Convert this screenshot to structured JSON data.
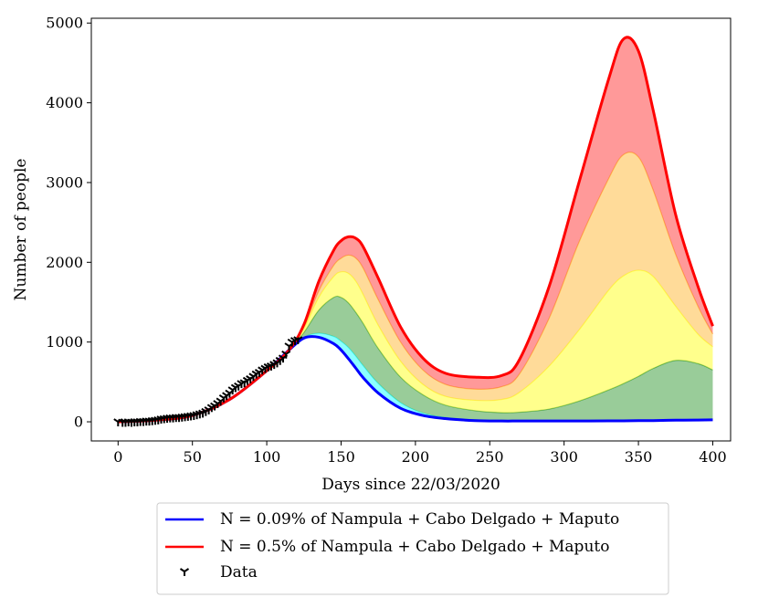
{
  "chart_data": {
    "type": "area",
    "title": "",
    "xlabel": "Days since 22/03/2020",
    "ylabel": "Number of people",
    "xlim": [
      -18,
      412
    ],
    "ylim": [
      -240,
      5060
    ],
    "xticks": [
      0,
      50,
      100,
      150,
      200,
      250,
      300,
      350,
      400
    ],
    "yticks": [
      0,
      1000,
      2000,
      3000,
      4000,
      5000
    ],
    "x": [
      0,
      25,
      50,
      75,
      100,
      115,
      125,
      135,
      145,
      150,
      155,
      160,
      165,
      175,
      190,
      205,
      220,
      240,
      258,
      270,
      290,
      310,
      330,
      340,
      350,
      360,
      375,
      390,
      400
    ],
    "series": [
      {
        "name": "N = 0.09% of Nampula + Cabo Delgado + Maputo",
        "color": "#0000ff",
        "role": "lower-bound",
        "values": [
          0,
          20,
          80,
          280,
          640,
          900,
          1050,
          1060,
          980,
          900,
          790,
          670,
          550,
          360,
          170,
          80,
          40,
          15,
          10,
          10,
          10,
          10,
          12,
          12,
          15,
          15,
          20,
          22,
          25
        ]
      },
      {
        "name": "band-cyan",
        "color": "#00ffff",
        "values": [
          0,
          20,
          80,
          280,
          640,
          900,
          1060,
          1110,
          1070,
          1010,
          930,
          820,
          700,
          480,
          240,
          110,
          55,
          25,
          15,
          12,
          12,
          14,
          16,
          18,
          20,
          22,
          25,
          28,
          30
        ]
      },
      {
        "name": "band-green",
        "color": "#008000",
        "values": [
          0,
          20,
          80,
          280,
          640,
          900,
          1120,
          1400,
          1560,
          1560,
          1490,
          1370,
          1230,
          920,
          560,
          340,
          210,
          140,
          115,
          120,
          160,
          260,
          400,
          480,
          570,
          670,
          770,
          730,
          650
        ]
      },
      {
        "name": "band-yellow",
        "color": "#ffff00",
        "values": [
          0,
          20,
          80,
          280,
          640,
          900,
          1170,
          1560,
          1820,
          1880,
          1860,
          1760,
          1590,
          1210,
          760,
          470,
          320,
          270,
          280,
          370,
          700,
          1150,
          1650,
          1830,
          1900,
          1820,
          1450,
          1100,
          940
        ]
      },
      {
        "name": "band-orange",
        "color": "#ffa500",
        "values": [
          0,
          20,
          80,
          280,
          640,
          900,
          1190,
          1640,
          1960,
          2050,
          2090,
          2050,
          1920,
          1530,
          1000,
          650,
          470,
          410,
          440,
          600,
          1300,
          2250,
          3050,
          3350,
          3320,
          2900,
          2100,
          1450,
          1100
        ]
      },
      {
        "name": "N = 0.5% of Nampula + Cabo Delgado + Maputo",
        "color": "#ff0000",
        "role": "upper-bound",
        "values": [
          0,
          20,
          80,
          280,
          640,
          900,
          1220,
          1760,
          2150,
          2270,
          2320,
          2300,
          2190,
          1800,
          1190,
          800,
          610,
          560,
          580,
          780,
          1700,
          3000,
          4300,
          4800,
          4650,
          3900,
          2600,
          1700,
          1200
        ]
      }
    ],
    "data_points": {
      "name": "Data",
      "marker": "Y",
      "x": [
        0,
        3,
        5,
        7,
        9,
        11,
        13,
        15,
        17,
        19,
        21,
        23,
        25,
        27,
        29,
        31,
        33,
        35,
        37,
        39,
        41,
        43,
        45,
        47,
        49,
        51,
        53,
        55,
        57,
        59,
        61,
        63,
        65,
        67,
        69,
        71,
        73,
        75,
        77,
        79,
        81,
        83,
        85,
        87,
        89,
        91,
        93,
        95,
        97,
        99,
        101,
        103,
        105,
        107,
        109,
        111,
        113,
        115,
        117,
        119,
        121
      ],
      "y": [
        0,
        -5,
        -5,
        0,
        -5,
        0,
        0,
        5,
        5,
        10,
        10,
        15,
        20,
        25,
        35,
        40,
        45,
        50,
        50,
        55,
        55,
        60,
        65,
        70,
        75,
        80,
        90,
        100,
        110,
        130,
        150,
        180,
        200,
        230,
        260,
        300,
        330,
        360,
        400,
        430,
        450,
        480,
        490,
        520,
        540,
        570,
        600,
        620,
        650,
        670,
        690,
        700,
        720,
        740,
        770,
        800,
        850,
        950,
        1000,
        1020,
        1030
      ]
    },
    "legend": {
      "placement": "bottom-center (outside plot)",
      "entries": [
        {
          "label": "N = 0.09% of Nampula + Cabo Delgado + Maputo",
          "color": "#0000ff",
          "kind": "line"
        },
        {
          "label": "N = 0.5% of Nampula + Cabo Delgado + Maputo",
          "color": "#ff0000",
          "kind": "line"
        },
        {
          "label": "Data",
          "color": "#000000",
          "kind": "marker",
          "marker": "Y"
        }
      ]
    }
  }
}
